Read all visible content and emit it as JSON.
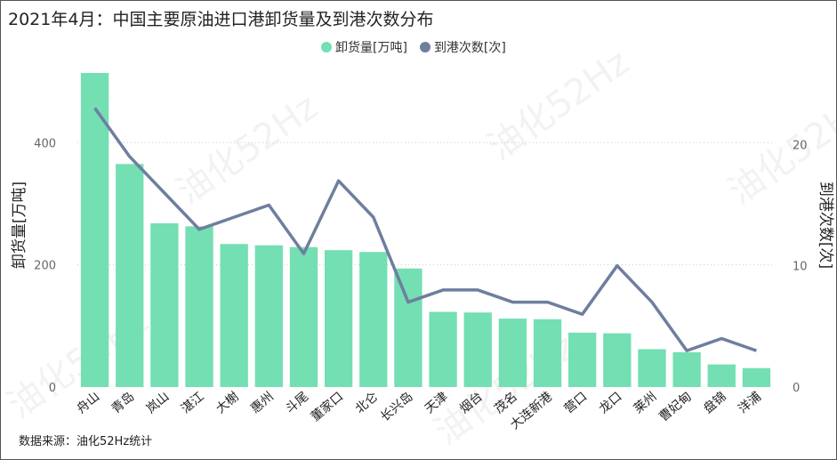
{
  "title": "2021年4月：中国主要原油进口港卸货量及到港次数分布",
  "source": "数据来源：油化52Hz统计",
  "watermark": "油化52Hz",
  "chart_data": {
    "type": "bar",
    "title": "2021年4月：中国主要原油进口港卸货量及到港次数分布",
    "categories": [
      "舟山",
      "青岛",
      "岚山",
      "湛江",
      "大榭",
      "惠州",
      "斗尾",
      "董家口",
      "北仑",
      "长兴岛",
      "天津",
      "烟台",
      "茂名",
      "大连新港",
      "营口",
      "龙口",
      "莱州",
      "曹妃甸",
      "盘锦",
      "洋浦"
    ],
    "series": [
      {
        "name": "卸货量[万吨]",
        "type": "bar",
        "axis": "left",
        "color": "#73dfb3",
        "values": [
          514,
          365,
          268,
          263,
          234,
          232,
          229,
          224,
          221,
          194,
          123,
          122,
          112,
          111,
          89,
          88,
          62,
          57,
          37,
          31
        ]
      },
      {
        "name": "到港次数[次]",
        "type": "line",
        "axis": "right",
        "color": "#6f7e9f",
        "values": [
          23,
          19,
          16,
          13,
          14,
          15,
          11,
          17,
          14,
          7,
          8,
          8,
          7,
          7,
          6,
          10,
          7,
          3,
          4,
          3
        ]
      }
    ],
    "ylabel": "卸货量[万吨]",
    "y2label": "到港次数[次]",
    "ylim": [
      0,
      530
    ],
    "y2lim": [
      0,
      26.7
    ],
    "yticks": [
      0,
      200,
      400
    ],
    "y2ticks": [
      0,
      10,
      20
    ],
    "grid": true,
    "legend": "top-center"
  }
}
